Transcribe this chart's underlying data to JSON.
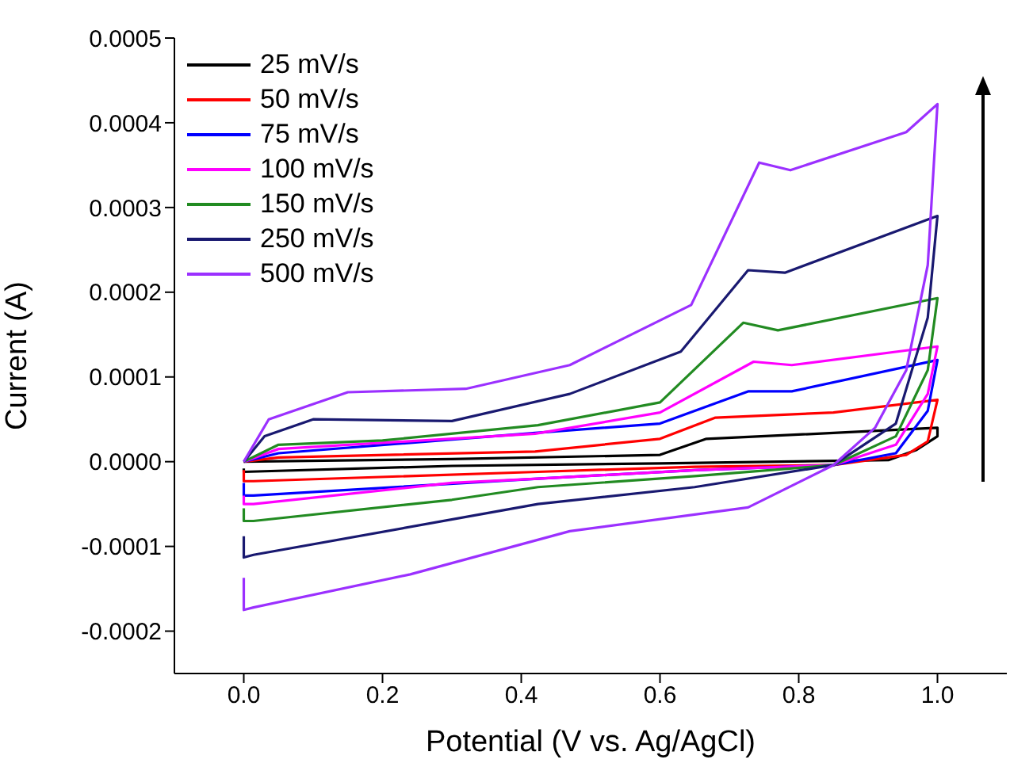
{
  "chart_data": {
    "type": "line",
    "xlabel": "Potential (V vs. Ag/AgCl)",
    "ylabel": "Current (A)",
    "xlim": [
      -0.1,
      1.1
    ],
    "xticks": [
      {
        "value": 0,
        "label": "0.0"
      },
      {
        "value": 0.2,
        "label": "0.2"
      },
      {
        "value": 0.4,
        "label": "0.4"
      },
      {
        "value": 0.6,
        "label": "0.6"
      },
      {
        "value": 0.8,
        "label": "0.8"
      },
      {
        "value": 1,
        "label": "1.0"
      }
    ],
    "ylim": [
      -0.00025,
      0.0005
    ],
    "yticks": [
      {
        "value": -0.0002,
        "label": "-0.0002"
      },
      {
        "value": -0.0001,
        "label": "-0.0001"
      },
      {
        "value": 0,
        "label": "0.0000"
      },
      {
        "value": 0.0001,
        "label": "0.0001"
      },
      {
        "value": 0.0002,
        "label": "0.0002"
      },
      {
        "value": 0.0003,
        "label": "0.0003"
      },
      {
        "value": 0.0004,
        "label": "0.0004"
      },
      {
        "value": 0.0005,
        "label": "0.0005"
      }
    ],
    "legend": "top left",
    "marker": "none",
    "line_style": "solid",
    "series": [
      {
        "name": "25 mV/s",
        "color": "#000000",
        "x": [
          0,
          0.3,
          0.6,
          0.667,
          0.8,
          1.0,
          1.0,
          0.97,
          0.93,
          0.6,
          0.3,
          0.0,
          0.0
        ],
        "values": [
          0,
          3e-06,
          8e-06,
          2.7e-05,
          3.2e-05,
          4e-05,
          3e-05,
          1.4e-05,
          2e-06,
          -2e-06,
          -5e-06,
          -1.2e-05,
          -8e-06
        ]
      },
      {
        "name": "50 mV/s",
        "color": "#ff0000",
        "x": [
          0,
          0.05,
          0.42,
          0.6,
          0.68,
          0.85,
          1.0,
          0.986,
          0.955,
          0.85,
          0.65,
          0.424,
          0.014,
          0.0,
          0.0
        ],
        "values": [
          0,
          5e-06,
          1.2e-05,
          2.7e-05,
          5.2e-05,
          5.8e-05,
          7.3e-05,
          2.4e-05,
          8e-06,
          -4e-06,
          -6e-06,
          -1.2e-05,
          -2.3e-05,
          -2.3e-05,
          -1e-05
        ]
      },
      {
        "name": "75 mV/s",
        "color": "#0000ff",
        "x": [
          0,
          0.05,
          0.42,
          0.6,
          0.727,
          0.79,
          1.0,
          0.986,
          0.94,
          0.85,
          0.65,
          0.424,
          0.014,
          0.0,
          0.0
        ],
        "values": [
          0,
          1e-05,
          3.4e-05,
          4.5e-05,
          8.3e-05,
          8.3e-05,
          0.00012,
          6e-05,
          1e-05,
          -4e-06,
          -1e-05,
          -2e-05,
          -4e-05,
          -4e-05,
          -2.5e-05
        ]
      },
      {
        "name": "100 mV/s",
        "color": "#ff00ff",
        "x": [
          0,
          0.05,
          0.42,
          0.6,
          0.735,
          0.79,
          1.0,
          0.986,
          0.94,
          0.85,
          0.65,
          0.424,
          0.3,
          0.014,
          0.0,
          0.0
        ],
        "values": [
          0,
          1.5e-05,
          3.3e-05,
          5.8e-05,
          0.000118,
          0.000114,
          0.000136,
          8e-05,
          2e-05,
          -4e-06,
          -1e-05,
          -2e-05,
          -2.5e-05,
          -5e-05,
          -5e-05,
          -4e-05
        ]
      },
      {
        "name": "150 mV/s",
        "color": "#228b22",
        "x": [
          0,
          0.05,
          0.2,
          0.424,
          0.6,
          0.72,
          0.77,
          1.0,
          0.986,
          0.94,
          0.85,
          0.65,
          0.424,
          0.3,
          0.014,
          0.0,
          0.0
        ],
        "values": [
          0,
          2e-05,
          2.5e-05,
          4.3e-05,
          7e-05,
          0.000164,
          0.000155,
          0.000193,
          0.000108,
          3e-05,
          -4e-06,
          -1.7e-05,
          -3e-05,
          -4.5e-05,
          -7e-05,
          -7e-05,
          -5.5e-05
        ]
      },
      {
        "name": "250 mV/s",
        "color": "#191970",
        "x": [
          0,
          0.03,
          0.1,
          0.3,
          0.47,
          0.63,
          0.727,
          0.78,
          1.0,
          0.986,
          0.94,
          0.85,
          0.65,
          0.424,
          0.014,
          0.0,
          0.0
        ],
        "values": [
          0,
          3e-05,
          5e-05,
          4.8e-05,
          8e-05,
          0.00013,
          0.000226,
          0.000223,
          0.00029,
          0.00017,
          4.5e-05,
          -4e-06,
          -3e-05,
          -5e-05,
          -0.00011,
          -0.000113,
          -8.8e-05
        ]
      },
      {
        "name": "500 mV/s",
        "color": "#9b30ff",
        "x": [
          0,
          0.036,
          0.15,
          0.32,
          0.47,
          0.645,
          0.743,
          0.788,
          0.955,
          1.0,
          0.986,
          0.955,
          0.91,
          0.85,
          0.727,
          0.47,
          0.24,
          0.014,
          0.0,
          0.0
        ],
        "values": [
          0,
          5e-05,
          8.2e-05,
          8.6e-05,
          0.000114,
          0.000185,
          0.000353,
          0.000344,
          0.000389,
          0.000422,
          0.000232,
          0.000108,
          4e-05,
          -4e-06,
          -5.4e-05,
          -8.2e-05,
          -0.000133,
          -0.000172,
          -0.000175,
          -0.000137
        ]
      }
    ]
  }
}
